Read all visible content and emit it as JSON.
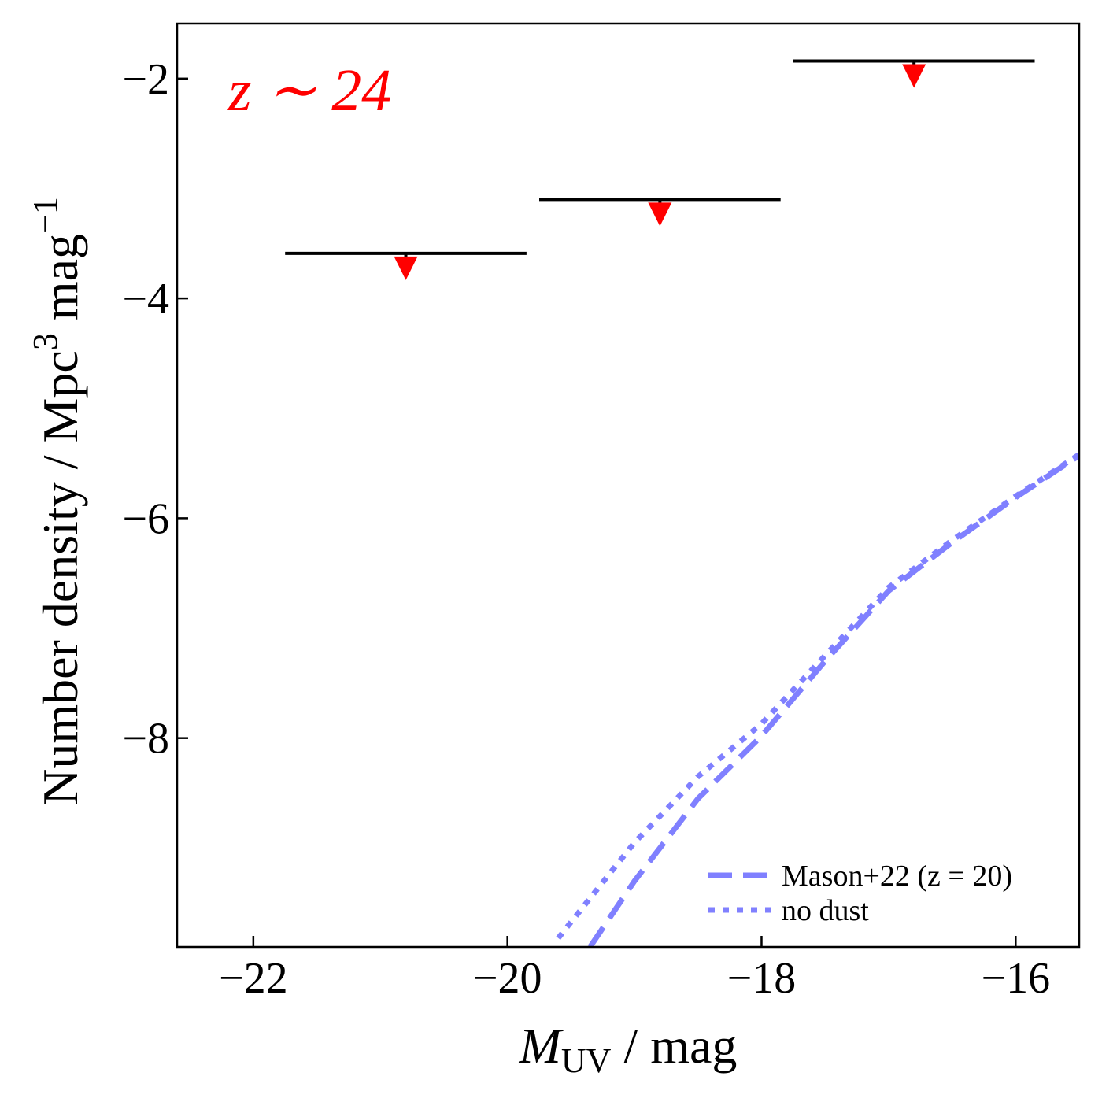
{
  "chart_data": {
    "type": "line",
    "annotation": "z ∼ 24",
    "annotation_color": "#ff0000",
    "xlabel": [
      "M",
      "UV",
      " / mag"
    ],
    "ylabel": [
      "Number density / Mpc",
      "3",
      " mag",
      "−1"
    ],
    "xlim": [
      -22.6,
      -15.5
    ],
    "ylim": [
      -9.9,
      -1.5
    ],
    "xticks": [
      {
        "value": -22,
        "label": "−22"
      },
      {
        "value": -20,
        "label": "−20"
      },
      {
        "value": -18,
        "label": "−18"
      },
      {
        "value": -16,
        "label": "−16"
      }
    ],
    "yticks": [
      {
        "value": -2,
        "label": "−2"
      },
      {
        "value": -4,
        "label": "−4"
      },
      {
        "value": -6,
        "label": "−6"
      },
      {
        "value": -8,
        "label": "−8"
      }
    ],
    "legend": "lower right",
    "series": [
      {
        "name": "Mason+22 (z = 20)",
        "color": "#8080ff",
        "style": "dashed",
        "x": [
          -19.35,
          -19,
          -18.5,
          -18,
          -17.5,
          -17,
          -16.5,
          -16,
          -15.5
        ],
        "values": [
          -9.9,
          -9.3,
          -8.55,
          -7.98,
          -7.3,
          -6.66,
          -6.22,
          -5.81,
          -5.43
        ]
      },
      {
        "name": "no dust",
        "color": "#8080ff",
        "style": "dotted",
        "x": [
          -19.6,
          -19,
          -18.5,
          -18,
          -17.5,
          -17,
          -16.5,
          -16,
          -15.5
        ],
        "values": [
          -9.82,
          -8.95,
          -8.35,
          -7.87,
          -7.25,
          -6.63,
          -6.2,
          -5.8,
          -5.42
        ]
      }
    ],
    "points": {
      "x": [
        -20.8,
        -18.8,
        -16.8
      ],
      "y": [
        -3.59,
        -3.1,
        -1.84
      ],
      "xerr": [
        0.95,
        0.95,
        0.95
      ],
      "color": "#ff0000",
      "bar_color": "#000000",
      "upper_limit": true
    }
  }
}
